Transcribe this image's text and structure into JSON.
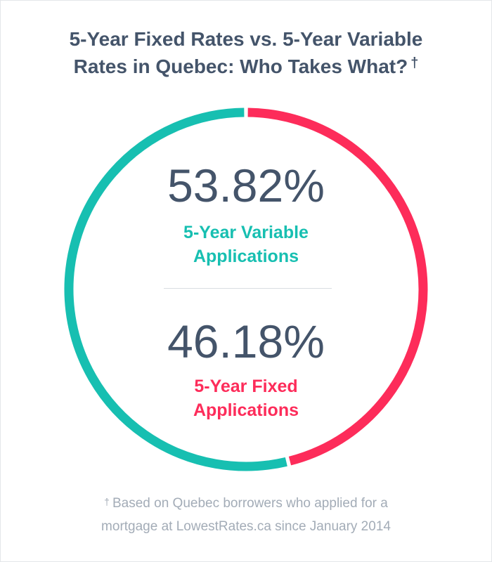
{
  "title": {
    "line1": "5-Year Fixed Rates vs. 5-Year Variable",
    "line2": "Rates in Quebec: Who Takes What?",
    "dagger": "†"
  },
  "chart_data": {
    "type": "pie",
    "style": "donut",
    "title": "5-Year Fixed Rates vs. 5-Year Variable Rates in Quebec: Who Takes What? †",
    "series": [
      {
        "value": 53.82,
        "value_label": "53.82%",
        "label_line1": "5-Year Variable",
        "label_line2": "Applications",
        "color": "#17bfb1"
      },
      {
        "value": 46.18,
        "value_label": "46.18%",
        "label_line1": "5-Year Fixed",
        "label_line2": "Applications",
        "color": "#fd2c5a"
      }
    ]
  },
  "footnote": {
    "dagger": "†",
    "line1": "Based on Quebec borrowers who applied for a",
    "line2": "mortgage at LowestRates.ca since January 2014"
  }
}
